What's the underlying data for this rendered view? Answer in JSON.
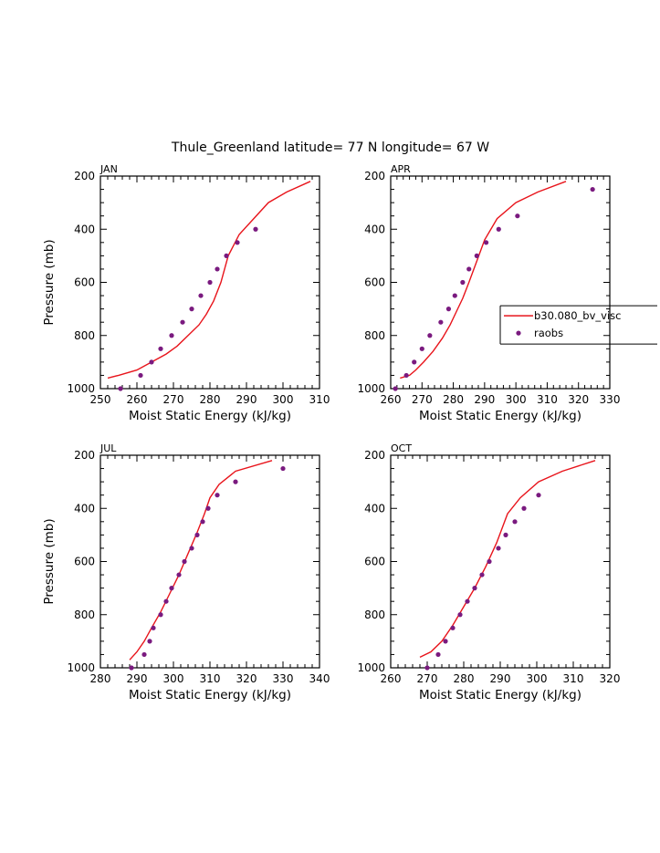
{
  "figure_title": "Thule_Greenland  latitude= 77 N longitude= 67 W",
  "colors": {
    "model": "#e8141b",
    "obs": "#7a1a7f",
    "axis": "#000000"
  },
  "legend": {
    "model_label": "b30.080_bv_visc",
    "obs_label": "raobs"
  },
  "chart_data": [
    {
      "type": "line",
      "panel": "JAN",
      "xlabel": "Moist Static Energy (kJ/kg)",
      "ylabel": "Pressure (mb)",
      "xlim": [
        250,
        310
      ],
      "xticks": [
        250,
        260,
        270,
        280,
        290,
        300,
        310
      ],
      "ylim": [
        200,
        1000
      ],
      "yticks": [
        200,
        400,
        600,
        800,
        1000
      ],
      "model": {
        "name": "b30.080_bv_visc",
        "x": [
          252,
          255,
          260,
          264,
          268,
          271,
          274,
          277,
          279,
          281,
          283,
          285,
          288,
          292,
          296,
          301,
          307.5
        ],
        "y": [
          960,
          950,
          930,
          900,
          870,
          840,
          800,
          760,
          720,
          670,
          600,
          500,
          420,
          360,
          300,
          260,
          220
        ]
      },
      "raobs": {
        "name": "raobs",
        "x": [
          255.5,
          261,
          264,
          266.5,
          269.5,
          272.5,
          275,
          277.5,
          280,
          282,
          284.5,
          287.5,
          292.5
        ],
        "y": [
          1000,
          950,
          900,
          850,
          800,
          750,
          700,
          650,
          600,
          550,
          500,
          450,
          400
        ]
      }
    },
    {
      "type": "line",
      "panel": "APR",
      "xlabel": "Moist Static Energy (kJ/kg)",
      "ylabel": "Pressure (mb)",
      "xlim": [
        260,
        330
      ],
      "xticks": [
        260,
        270,
        280,
        290,
        300,
        310,
        320,
        330
      ],
      "ylim": [
        200,
        1000
      ],
      "yticks": [
        200,
        400,
        600,
        800,
        1000
      ],
      "model": {
        "name": "b30.080_bv_visc",
        "x": [
          263,
          266,
          268,
          270.5,
          273.5,
          276.5,
          279,
          281,
          283,
          285,
          287.5,
          290,
          294,
          300,
          307,
          316
        ],
        "y": [
          960,
          950,
          930,
          900,
          860,
          810,
          760,
          710,
          660,
          600,
          520,
          440,
          360,
          300,
          260,
          220
        ]
      },
      "raobs": {
        "name": "raobs",
        "x": [
          261.5,
          265,
          267.5,
          270,
          272.5,
          276,
          278.5,
          280.5,
          283,
          285,
          287.5,
          290.5,
          294.5,
          300.5,
          324.5
        ],
        "y": [
          1000,
          950,
          900,
          850,
          800,
          750,
          700,
          650,
          600,
          550,
          500,
          450,
          400,
          350,
          250
        ]
      }
    },
    {
      "type": "line",
      "panel": "JUL",
      "xlabel": "Moist Static Energy (kJ/kg)",
      "ylabel": "Pressure (mb)",
      "xlim": [
        280,
        340
      ],
      "xticks": [
        280,
        290,
        300,
        310,
        320,
        330,
        340
      ],
      "ylim": [
        200,
        1000
      ],
      "yticks": [
        200,
        400,
        600,
        800,
        1000
      ],
      "model": {
        "name": "b30.080_bv_visc",
        "x": [
          288,
          290,
          292,
          294,
          296.5,
          299,
          301.5,
          304,
          306.5,
          308.5,
          310,
          312.5,
          317,
          327
        ],
        "y": [
          970,
          940,
          900,
          850,
          790,
          720,
          650,
          570,
          490,
          420,
          360,
          310,
          260,
          220
        ]
      },
      "raobs": {
        "name": "raobs",
        "x": [
          288.5,
          292,
          293.5,
          294.5,
          296.5,
          298,
          299.5,
          301.5,
          303,
          305,
          306.5,
          308,
          309.5,
          312,
          317,
          330
        ],
        "y": [
          1000,
          950,
          900,
          850,
          800,
          750,
          700,
          650,
          600,
          550,
          500,
          450,
          400,
          350,
          300,
          250
        ]
      }
    },
    {
      "type": "line",
      "panel": "OCT",
      "xlabel": "Moist Static Energy (kJ/kg)",
      "ylabel": "Pressure (mb)",
      "xlim": [
        260,
        320
      ],
      "xticks": [
        260,
        270,
        280,
        290,
        300,
        310,
        320
      ],
      "ylim": [
        200,
        1000
      ],
      "yticks": [
        200,
        400,
        600,
        800,
        1000
      ],
      "model": {
        "name": "b30.080_bv_visc",
        "x": [
          268,
          271,
          274,
          277,
          280,
          283,
          286,
          289,
          292,
          295.5,
          300.5,
          307,
          316
        ],
        "y": [
          960,
          940,
          900,
          840,
          770,
          700,
          620,
          530,
          420,
          360,
          300,
          260,
          220
        ]
      },
      "raobs": {
        "name": "raobs",
        "x": [
          270,
          273,
          275,
          277,
          279,
          281,
          283,
          285,
          287,
          289.5,
          291.5,
          294,
          296.5,
          300.5
        ],
        "y": [
          1000,
          950,
          900,
          850,
          800,
          750,
          700,
          650,
          600,
          550,
          500,
          450,
          400,
          350
        ]
      }
    }
  ]
}
